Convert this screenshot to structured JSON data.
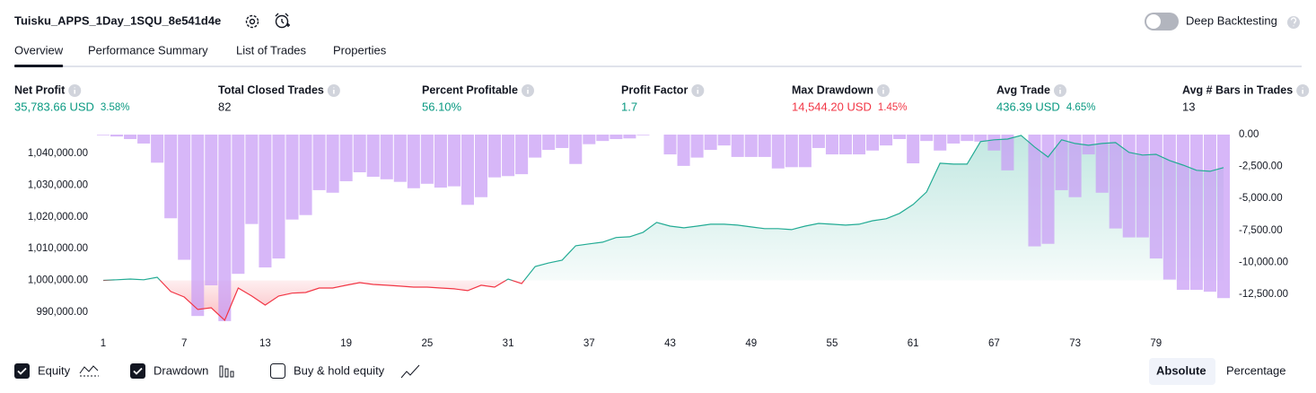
{
  "header": {
    "title": "Tuisku_APPS_1Day_1SQU_8e541d4e",
    "deep_backtesting": "Deep Backtesting"
  },
  "tabs": [
    "Overview",
    "Performance Summary",
    "List of Trades",
    "Properties"
  ],
  "active_tab": 0,
  "metrics": [
    {
      "label": "Net Profit",
      "value": "35,783.66 USD",
      "percent": "3.58%",
      "color": "#089981"
    },
    {
      "label": "Total Closed Trades",
      "value": "82",
      "color": "#131722"
    },
    {
      "label": "Percent Profitable",
      "value": "56.10%",
      "color": "#089981"
    },
    {
      "label": "Profit Factor",
      "value": "1.7",
      "color": "#089981"
    },
    {
      "label": "Max Drawdown",
      "value": "14,544.20 USD",
      "percent": "1.45%",
      "color": "#f23645"
    },
    {
      "label": "Avg Trade",
      "value": "436.39 USD",
      "percent": "4.65%",
      "color": "#089981"
    },
    {
      "label": "Avg # Bars in Trades",
      "value": "13",
      "color": "#131722"
    }
  ],
  "chart_data": {
    "type": "combo",
    "x": [
      1,
      2,
      3,
      4,
      5,
      6,
      7,
      8,
      9,
      10,
      11,
      12,
      13,
      14,
      15,
      16,
      17,
      18,
      19,
      20,
      21,
      22,
      23,
      24,
      25,
      26,
      27,
      28,
      29,
      30,
      31,
      32,
      33,
      34,
      35,
      36,
      37,
      38,
      39,
      40,
      41,
      42,
      43,
      44,
      45,
      46,
      47,
      48,
      49,
      50,
      51,
      52,
      53,
      54,
      55,
      56,
      57,
      58,
      59,
      60,
      61,
      62,
      63,
      64,
      65,
      66,
      67,
      68,
      69,
      70,
      71,
      72,
      73,
      74,
      75,
      76,
      77,
      78,
      79,
      80,
      81,
      82,
      83,
      84
    ],
    "xlim": [
      1,
      84
    ],
    "xticks": [
      1,
      7,
      13,
      19,
      25,
      31,
      37,
      43,
      49,
      55,
      61,
      67,
      73,
      79
    ],
    "ylim": [
      986600,
      1045900
    ],
    "yticks": [
      {
        "value": 990000,
        "label": "990,000.00"
      },
      {
        "value": 1000000,
        "label": "1,000,000.00"
      },
      {
        "value": 1010000,
        "label": "1,010,000.00"
      },
      {
        "value": 1020000,
        "label": "1,020,000.00"
      },
      {
        "value": 1030000,
        "label": "1,030,000.00"
      },
      {
        "value": 1040000,
        "label": "1,040,000.00"
      }
    ],
    "y2lim": [
      -14750,
      0
    ],
    "y2ticks": [
      {
        "value": 0,
        "label": "0.00"
      },
      {
        "value": -2500,
        "label": "-2,500.00"
      },
      {
        "value": -5000,
        "label": "-5,000.00"
      },
      {
        "value": -7500,
        "label": "-7,500.00"
      },
      {
        "value": -10000,
        "label": "-10,000.00"
      },
      {
        "value": -12500,
        "label": "-12,500.00"
      }
    ],
    "grid": false,
    "series": [
      {
        "name": "Equity",
        "type": "area",
        "color": "#22ab94",
        "negative_color": "#f23645",
        "visible": true,
        "values": [
          1000000,
          1000200,
          1000450,
          1000200,
          1001000,
          996500,
          994800,
          990850,
          991400,
          987450,
          997600,
          995100,
          992250,
          995100,
          996000,
          996200,
          997600,
          997600,
          998500,
          999300,
          998750,
          998500,
          998200,
          997900,
          997900,
          997600,
          997350,
          996800,
          998500,
          997900,
          1000450,
          999000,
          1004400,
          1005500,
          1006400,
          1010900,
          1011500,
          1012050,
          1013500,
          1013750,
          1015150,
          1018250,
          1017100,
          1016550,
          1017100,
          1017700,
          1017700,
          1017400,
          1016850,
          1016300,
          1016300,
          1016000,
          1017100,
          1017950,
          1017700,
          1017400,
          1017700,
          1018800,
          1019400,
          1021100,
          1023900,
          1027850,
          1036900,
          1036600,
          1036600,
          1043700,
          1044250,
          1044500,
          1045650,
          1042000,
          1038850,
          1044250,
          1043100,
          1042550,
          1043100,
          1043400,
          1040300,
          1039450,
          1039700,
          1037750,
          1036300,
          1034650,
          1034350,
          1035500
        ]
      },
      {
        "name": "Drawdown",
        "type": "bar",
        "axis": "y2",
        "color": "#c79bf5",
        "visible": true,
        "values": [
          -50,
          -150,
          -350,
          -700,
          -2200,
          -6550,
          -9800,
          -14200,
          -11800,
          -14600,
          -10900,
          -7000,
          -10400,
          -9700,
          -6650,
          -6300,
          -4350,
          -4550,
          -3650,
          -2950,
          -3300,
          -3500,
          -3700,
          -4200,
          -3850,
          -4150,
          -4050,
          -5500,
          -4900,
          -3350,
          -3250,
          -3100,
          -1800,
          -1200,
          -1050,
          -2300,
          -750,
          -500,
          -350,
          -300,
          -50,
          0,
          -1550,
          -2450,
          -1800,
          -1200,
          -850,
          -1750,
          -1750,
          -1750,
          -2650,
          -2550,
          -2550,
          -1050,
          -1550,
          -1550,
          -1550,
          -1250,
          -850,
          -350,
          -2250,
          -500,
          -1250,
          -700,
          -500,
          -550,
          -1250,
          -2800,
          0,
          -8750,
          -8550,
          -4350,
          -4900,
          -1550,
          -4550,
          -7350,
          -8050,
          -8050,
          -9700,
          -11350,
          -12150,
          -12150,
          -12300,
          -12800
        ]
      }
    ]
  },
  "buy_hold_toggle": {
    "label": "Buy & hold equity",
    "checked": false
  },
  "view_buttons": [
    "Absolute",
    "Percentage"
  ],
  "active_view": 0
}
